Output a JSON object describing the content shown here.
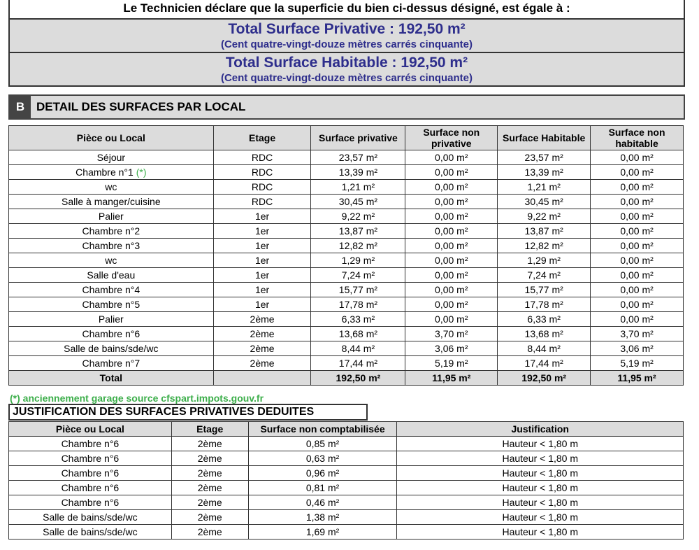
{
  "declaration": {
    "intro": "Le Technicien déclare que la superficie du bien ci-dessus désigné, est égale à :",
    "privative_title": "Total Surface Privative : 192,50 m²",
    "privative_words": "(Cent quatre-vingt-douze mètres carrés cinquante)",
    "habitable_title": "Total Surface Habitable : 192,50 m²",
    "habitable_words": "(Cent quatre-vingt-douze mètres carrés cinquante)"
  },
  "section_b": {
    "letter": "B",
    "title": "DETAIL DES SURFACES PAR LOCAL"
  },
  "detail_table": {
    "headers": [
      "Pièce ou Local",
      "Etage",
      "Surface privative",
      "Surface non privative",
      "Surface Habitable",
      "Surface non habitable"
    ],
    "rows": [
      [
        "Séjour",
        "RDC",
        "23,57 m²",
        "0,00 m²",
        "23,57 m²",
        "0,00 m²"
      ],
      [
        "Chambre n°1",
        "RDC",
        "13,39 m²",
        "0,00 m²",
        "13,39 m²",
        "0,00 m²"
      ],
      [
        "wc",
        "RDC",
        "1,21 m²",
        "0,00 m²",
        "1,21 m²",
        "0,00 m²"
      ],
      [
        "Salle à manger/cuisine",
        "RDC",
        "30,45 m²",
        "0,00 m²",
        "30,45 m²",
        "0,00 m²"
      ],
      [
        "Palier",
        "1er",
        "9,22 m²",
        "0,00 m²",
        "9,22 m²",
        "0,00 m²"
      ],
      [
        "Chambre n°2",
        "1er",
        "13,87 m²",
        "0,00 m²",
        "13,87 m²",
        "0,00 m²"
      ],
      [
        "Chambre n°3",
        "1er",
        "12,82 m²",
        "0,00 m²",
        "12,82 m²",
        "0,00 m²"
      ],
      [
        "wc",
        "1er",
        "1,29 m²",
        "0,00 m²",
        "1,29 m²",
        "0,00 m²"
      ],
      [
        "Salle d'eau",
        "1er",
        "7,24 m²",
        "0,00 m²",
        "7,24 m²",
        "0,00 m²"
      ],
      [
        "Chambre n°4",
        "1er",
        "15,77 m²",
        "0,00 m²",
        "15,77 m²",
        "0,00 m²"
      ],
      [
        "Chambre n°5",
        "1er",
        "17,78 m²",
        "0,00 m²",
        "17,78 m²",
        "0,00 m²"
      ],
      [
        "Palier",
        "2ème",
        "6,33 m²",
        "0,00 m²",
        "6,33 m²",
        "0,00 m²"
      ],
      [
        "Chambre n°6",
        "2ème",
        "13,68 m²",
        "3,70 m²",
        "13,68 m²",
        "3,70 m²"
      ],
      [
        "Salle de bains/sde/wc",
        "2ème",
        "8,44 m²",
        "3,06 m²",
        "8,44 m²",
        "3,06 m²"
      ],
      [
        "Chambre n°7",
        "2ème",
        "17,44 m²",
        "5,19 m²",
        "17,44 m²",
        "5,19 m²"
      ]
    ],
    "marker": "(*)",
    "total": [
      "Total",
      "",
      "192,50 m²",
      "11,95 m²",
      "192,50 m²",
      "11,95 m²"
    ]
  },
  "footnote": "(*) anciennement garage source cfspart.impots.gouv.fr",
  "justification": {
    "title": "JUSTIFICATION DES SURFACES PRIVATIVES DEDUITES",
    "headers": [
      "Pièce ou Local",
      "Etage",
      "Surface non comptabilisée",
      "Justification"
    ],
    "rows": [
      [
        "Chambre n°6",
        "2ème",
        "0,85 m²",
        "Hauteur < 1,80 m"
      ],
      [
        "Chambre n°6",
        "2ème",
        "0,63 m²",
        "Hauteur < 1,80 m"
      ],
      [
        "Chambre n°6",
        "2ème",
        "0,96 m²",
        "Hauteur < 1,80 m"
      ],
      [
        "Chambre n°6",
        "2ème",
        "0,81 m²",
        "Hauteur < 1,80 m"
      ],
      [
        "Chambre n°6",
        "2ème",
        "0,46 m²",
        "Hauteur < 1,80 m"
      ],
      [
        "Salle de bains/sde/wc",
        "2ème",
        "1,38 m²",
        "Hauteur < 1,80 m"
      ],
      [
        "Salle de bains/sde/wc",
        "2ème",
        "1,69 m²",
        "Hauteur < 1,80 m"
      ]
    ]
  },
  "colors": {
    "title_blue": "#2e2e8c",
    "note_green": "#3cae4a",
    "header_grey": "#dcdcdc"
  }
}
